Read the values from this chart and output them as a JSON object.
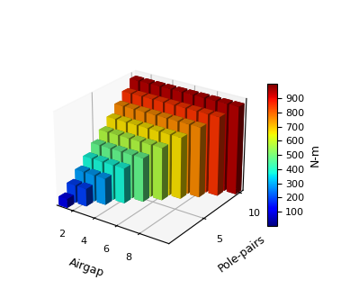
{
  "pole_pairs": [
    1,
    2,
    3,
    4,
    5,
    6,
    7,
    8,
    9,
    10
  ],
  "airgap": [
    1,
    2,
    3,
    4,
    5,
    6,
    7,
    8,
    9,
    10
  ],
  "xlabel": "Airgap",
  "ylabel": "Pole-pairs",
  "zlabel": "N-m",
  "colorbar_label": "N-m",
  "colorbar_ticks": [
    100,
    200,
    300,
    400,
    500,
    600,
    700,
    800,
    900
  ],
  "vmin": 0,
  "vmax": 1000,
  "elev": 25,
  "azim": -55,
  "bar_width": 0.8,
  "bar_depth": 0.8
}
